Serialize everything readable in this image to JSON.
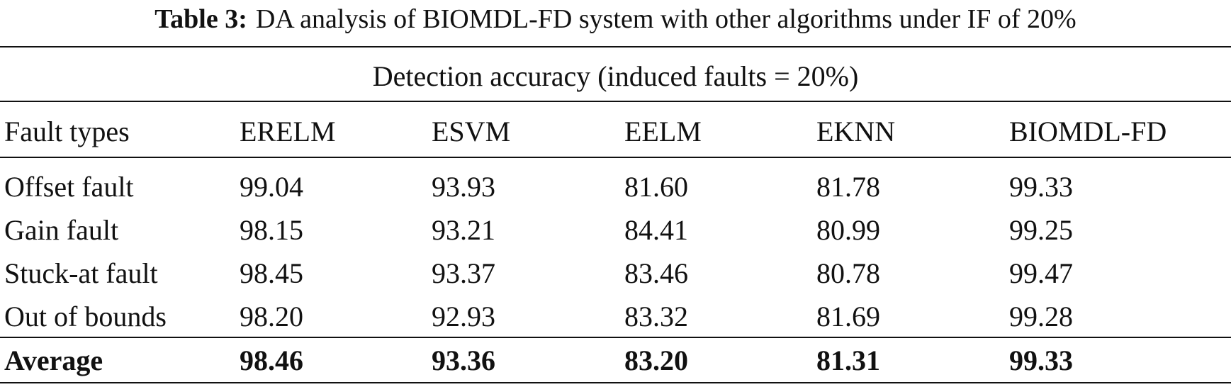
{
  "caption": {
    "label": "Table 3:",
    "text": "DA analysis of BIOMDL-FD system with other algorithms under IF of 20%"
  },
  "table": {
    "group_header": "Detection accuracy (induced faults = 20%)",
    "columns": [
      "Fault types",
      "ERELM",
      "ESVM",
      "EELM",
      "EKNN",
      "BIOMDL-FD"
    ],
    "rows": [
      [
        "Offset fault",
        "99.04",
        "93.93",
        "81.60",
        "81.78",
        "99.33"
      ],
      [
        "Gain fault",
        "98.15",
        "93.21",
        "84.41",
        "80.99",
        "99.25"
      ],
      [
        "Stuck-at fault",
        "98.45",
        "93.37",
        "83.46",
        "80.78",
        "99.47"
      ],
      [
        "Out of bounds",
        "98.20",
        "92.93",
        "83.32",
        "81.69",
        "99.28"
      ]
    ],
    "average": [
      "Average",
      "98.46",
      "93.36",
      "83.20",
      "81.31",
      "99.33"
    ]
  }
}
